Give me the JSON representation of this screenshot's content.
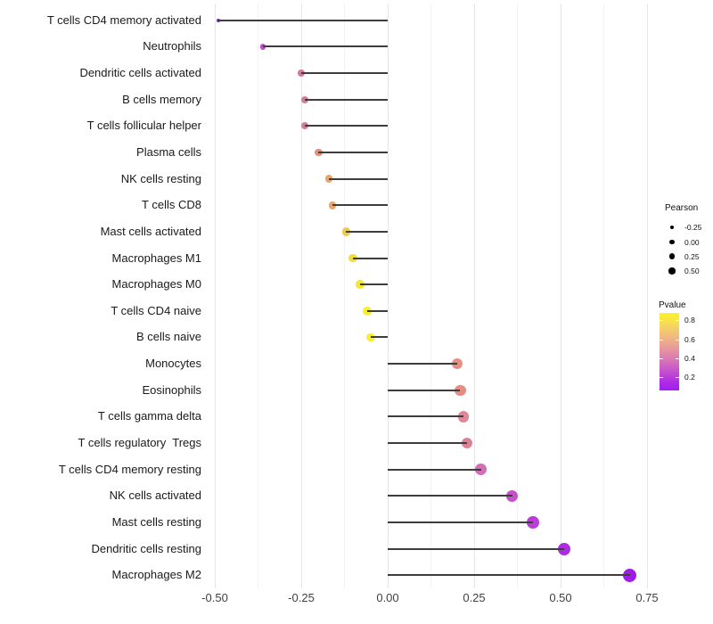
{
  "chart_data": {
    "type": "scatter",
    "subtype": "lollipop",
    "orientation": "horizontal",
    "title": "",
    "xlabel": "",
    "ylabel": "",
    "xlim": [
      -0.52,
      0.92
    ],
    "grid": "vertical-major-and-minor",
    "baseline_x": 0,
    "points": [
      {
        "category": "T cells CD4 memory activated",
        "pearson": -0.49,
        "pvalue": 0.01,
        "color": "#7a22b8"
      },
      {
        "category": "Neutrophils",
        "pearson": -0.36,
        "pvalue": 0.1,
        "color": "#bf4ec9"
      },
      {
        "category": "Dendritic cells activated",
        "pearson": -0.25,
        "pvalue": 0.3,
        "color": "#d4779f"
      },
      {
        "category": "B cells memory",
        "pearson": -0.24,
        "pvalue": 0.31,
        "color": "#d67d9b"
      },
      {
        "category": "T cells follicular helper",
        "pearson": -0.24,
        "pvalue": 0.31,
        "color": "#d67d9b"
      },
      {
        "category": "Plasma cells",
        "pearson": -0.2,
        "pvalue": 0.45,
        "color": "#e2907f"
      },
      {
        "category": "NK cells resting",
        "pearson": -0.17,
        "pvalue": 0.55,
        "color": "#eba56a"
      },
      {
        "category": "T cells CD8",
        "pearson": -0.16,
        "pvalue": 0.55,
        "color": "#eba568"
      },
      {
        "category": "Mast cells activated",
        "pearson": -0.12,
        "pvalue": 0.65,
        "color": "#edcb4d"
      },
      {
        "category": "Macrophages M1",
        "pearson": -0.1,
        "pvalue": 0.7,
        "color": "#f1dc3d"
      },
      {
        "category": "Macrophages M0",
        "pearson": -0.08,
        "pvalue": 0.74,
        "color": "#f4e634"
      },
      {
        "category": "T cells CD4 naive",
        "pearson": -0.06,
        "pvalue": 0.8,
        "color": "#f7ee2d"
      },
      {
        "category": "B cells naive",
        "pearson": -0.05,
        "pvalue": 0.8,
        "color": "#f7ee2d"
      },
      {
        "category": "Monocytes",
        "pearson": 0.2,
        "pvalue": 0.46,
        "color": "#e49183"
      },
      {
        "category": "Eosinophils",
        "pearson": 0.21,
        "pvalue": 0.45,
        "color": "#e38e85"
      },
      {
        "category": "T cells gamma delta",
        "pearson": 0.22,
        "pvalue": 0.36,
        "color": "#de8797"
      },
      {
        "category": "T cells regulatory  Tregs",
        "pearson": 0.23,
        "pvalue": 0.33,
        "color": "#dc8295"
      },
      {
        "category": "T cells CD4 memory resting",
        "pearson": 0.27,
        "pvalue": 0.2,
        "color": "#d06fb5"
      },
      {
        "category": "NK cells activated",
        "pearson": 0.36,
        "pvalue": 0.1,
        "color": "#c451c8"
      },
      {
        "category": "Mast cells resting",
        "pearson": 0.42,
        "pvalue": 0.07,
        "color": "#b83ed6"
      },
      {
        "category": "Dendritic cells resting",
        "pearson": 0.51,
        "pvalue": 0.04,
        "color": "#ab2ce4"
      },
      {
        "category": "Macrophages M2",
        "pearson": 0.7,
        "pvalue": 0.005,
        "color": "#a21ae8"
      }
    ],
    "x_ticks": [
      {
        "label": "-0.50",
        "value": -0.5
      },
      {
        "label": "-0.25",
        "value": -0.25
      },
      {
        "label": "0.00",
        "value": 0.0
      },
      {
        "label": "0.25",
        "value": 0.25
      },
      {
        "label": "0.50",
        "value": 0.5
      },
      {
        "label": "0.75",
        "value": 0.75
      }
    ],
    "size_legend": {
      "title": "Pearson",
      "entries": [
        {
          "label": "-0.25",
          "value": -0.25
        },
        {
          "label": "0.00",
          "value": 0.0
        },
        {
          "label": "0.25",
          "value": 0.25
        },
        {
          "label": "0.50",
          "value": 0.5
        }
      ]
    },
    "color_legend": {
      "title": "Pvalue",
      "ticks": [
        {
          "label": "0.8",
          "value": 0.8
        },
        {
          "label": "0.6",
          "value": 0.6
        },
        {
          "label": "0.4",
          "value": 0.4
        },
        {
          "label": "0.2",
          "value": 0.2
        }
      ],
      "gradient": [
        {
          "stop": 0,
          "color": "#fcf328"
        },
        {
          "stop": 15,
          "color": "#f7d95c"
        },
        {
          "stop": 30,
          "color": "#f0bb80"
        },
        {
          "stop": 45,
          "color": "#e89a9b"
        },
        {
          "stop": 60,
          "color": "#d977b6"
        },
        {
          "stop": 75,
          "color": "#c452cd"
        },
        {
          "stop": 90,
          "color": "#ad2ae6"
        },
        {
          "stop": 100,
          "color": "#a01ff0"
        }
      ]
    }
  },
  "colors": {
    "segment": "#3d3d3d",
    "grid_major": "#e7e7e7",
    "grid_minor": "#f3f3f3",
    "axis_text": "#404040",
    "category_text": "#1a1a1a",
    "legend_dot": "#000000",
    "background": "#ffffff"
  }
}
